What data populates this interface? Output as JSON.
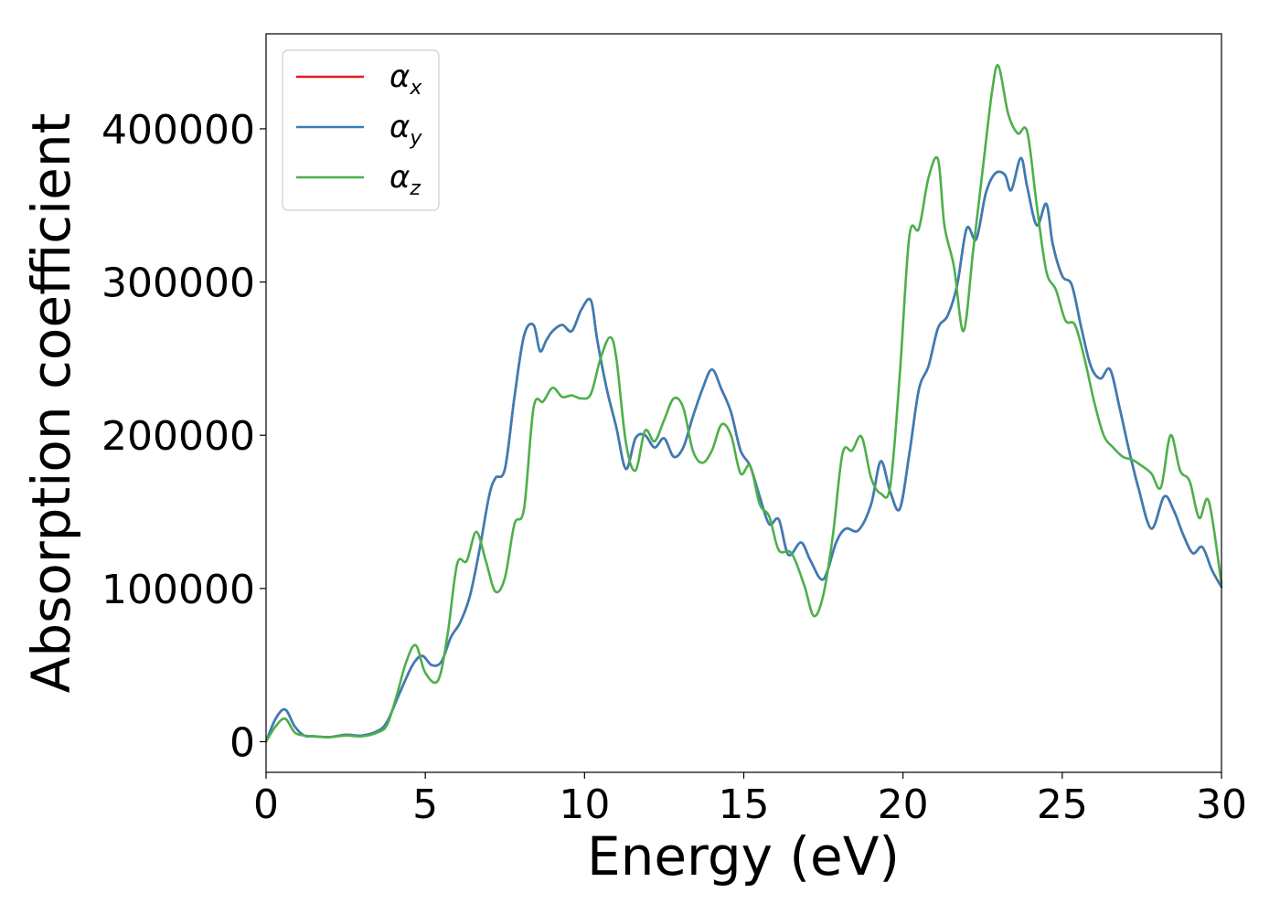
{
  "chart_data": {
    "type": "line",
    "title": "",
    "xlabel": "Energy (eV)",
    "ylabel": "Absorption coefficient",
    "xlim": [
      0,
      30
    ],
    "ylim": [
      -20000,
      462000
    ],
    "xticks": [
      0,
      5,
      10,
      15,
      20,
      25,
      30
    ],
    "xtick_labels": [
      "0",
      "5",
      "10",
      "15",
      "20",
      "25",
      "30"
    ],
    "yticks": [
      0,
      100000,
      200000,
      300000,
      400000
    ],
    "ytick_labels": [
      "0",
      "100000",
      "200000",
      "300000",
      "400000"
    ],
    "grid": false,
    "legend_position": "top-left",
    "series": [
      {
        "name": "α_x",
        "legend_symbol": "α",
        "legend_subscript": "x",
        "color": "#e41a1c",
        "x": [
          0,
          0.3,
          0.6,
          0.9,
          1.2,
          1.5,
          2.0,
          2.5,
          3.0,
          3.5,
          3.8,
          4.2,
          4.6,
          4.9,
          5.2,
          5.5,
          5.8,
          6.1,
          6.4,
          6.7,
          7.0,
          7.2,
          7.5,
          7.8,
          8.1,
          8.4,
          8.6,
          8.8,
          9.0,
          9.3,
          9.6,
          9.9,
          10.2,
          10.4,
          10.7,
          11.0,
          11.3,
          11.6,
          11.9,
          12.2,
          12.5,
          12.8,
          13.1,
          13.4,
          13.7,
          14.0,
          14.3,
          14.6,
          14.9,
          15.2,
          15.5,
          15.8,
          16.1,
          16.4,
          16.8,
          17.1,
          17.5,
          17.9,
          18.2,
          18.6,
          19.0,
          19.3,
          19.6,
          19.9,
          20.2,
          20.5,
          20.8,
          21.1,
          21.4,
          21.7,
          22.0,
          22.3,
          22.6,
          22.9,
          23.2,
          23.4,
          23.7,
          23.9,
          24.2,
          24.5,
          24.7,
          25.0,
          25.3,
          25.6,
          25.9,
          26.2,
          26.5,
          26.8,
          27.1,
          27.4,
          27.8,
          28.2,
          28.5,
          28.8,
          29.1,
          29.4,
          29.7,
          30.0
        ],
        "y": [
          0,
          15000,
          21000,
          10000,
          4000,
          3500,
          3000,
          4500,
          4000,
          7000,
          13000,
          32000,
          50000,
          56000,
          50000,
          52000,
          68000,
          78000,
          95000,
          125000,
          160000,
          172000,
          178000,
          225000,
          265000,
          272000,
          255000,
          262000,
          268000,
          272000,
          268000,
          282000,
          288000,
          262000,
          230000,
          205000,
          178000,
          198000,
          200000,
          192000,
          198000,
          186000,
          192000,
          212000,
          230000,
          243000,
          230000,
          215000,
          190000,
          180000,
          160000,
          142000,
          145000,
          122000,
          130000,
          118000,
          106000,
          130000,
          139000,
          138000,
          155000,
          183000,
          163000,
          152000,
          188000,
          230000,
          245000,
          270000,
          278000,
          298000,
          335000,
          328000,
          358000,
          371000,
          370000,
          360000,
          381000,
          362000,
          337000,
          351000,
          325000,
          304000,
          298000,
          270000,
          245000,
          237000,
          243000,
          218000,
          190000,
          165000,
          139000,
          160000,
          151000,
          135000,
          123000,
          127000,
          112000,
          101000
        ]
      },
      {
        "name": "α_y",
        "legend_symbol": "α",
        "legend_subscript": "y",
        "color": "#377eb8",
        "x": [
          0,
          0.3,
          0.6,
          0.9,
          1.2,
          1.5,
          2.0,
          2.5,
          3.0,
          3.5,
          3.8,
          4.2,
          4.6,
          4.9,
          5.2,
          5.5,
          5.8,
          6.1,
          6.4,
          6.7,
          7.0,
          7.2,
          7.5,
          7.8,
          8.1,
          8.4,
          8.6,
          8.8,
          9.0,
          9.3,
          9.6,
          9.9,
          10.2,
          10.4,
          10.7,
          11.0,
          11.3,
          11.6,
          11.9,
          12.2,
          12.5,
          12.8,
          13.1,
          13.4,
          13.7,
          14.0,
          14.3,
          14.6,
          14.9,
          15.2,
          15.5,
          15.8,
          16.1,
          16.4,
          16.8,
          17.1,
          17.5,
          17.9,
          18.2,
          18.6,
          19.0,
          19.3,
          19.6,
          19.9,
          20.2,
          20.5,
          20.8,
          21.1,
          21.4,
          21.7,
          22.0,
          22.3,
          22.6,
          22.9,
          23.2,
          23.4,
          23.7,
          23.9,
          24.2,
          24.5,
          24.7,
          25.0,
          25.3,
          25.6,
          25.9,
          26.2,
          26.5,
          26.8,
          27.1,
          27.4,
          27.8,
          28.2,
          28.5,
          28.8,
          29.1,
          29.4,
          29.7,
          30.0
        ],
        "y": [
          0,
          15000,
          21000,
          10000,
          4000,
          3500,
          3000,
          4500,
          4000,
          7000,
          13000,
          32000,
          50000,
          56000,
          50000,
          52000,
          68000,
          78000,
          95000,
          125000,
          160000,
          172000,
          178000,
          225000,
          265000,
          272000,
          255000,
          262000,
          268000,
          272000,
          268000,
          282000,
          288000,
          262000,
          230000,
          205000,
          178000,
          198000,
          200000,
          192000,
          198000,
          186000,
          192000,
          212000,
          230000,
          243000,
          230000,
          215000,
          190000,
          180000,
          160000,
          142000,
          145000,
          122000,
          130000,
          118000,
          106000,
          130000,
          139000,
          138000,
          155000,
          183000,
          163000,
          152000,
          188000,
          230000,
          245000,
          270000,
          278000,
          298000,
          335000,
          328000,
          358000,
          371000,
          370000,
          360000,
          381000,
          362000,
          337000,
          351000,
          325000,
          304000,
          298000,
          270000,
          245000,
          237000,
          243000,
          218000,
          190000,
          165000,
          139000,
          160000,
          151000,
          135000,
          123000,
          127000,
          112000,
          101000
        ]
      },
      {
        "name": "α_z",
        "legend_symbol": "α",
        "legend_subscript": "z",
        "color": "#4daf4a",
        "x": [
          0,
          0.3,
          0.6,
          0.9,
          1.2,
          1.5,
          2.0,
          2.5,
          3.0,
          3.5,
          3.8,
          4.1,
          4.4,
          4.7,
          5.0,
          5.4,
          5.7,
          6.0,
          6.3,
          6.6,
          6.9,
          7.2,
          7.5,
          7.8,
          8.1,
          8.4,
          8.7,
          9.0,
          9.3,
          9.6,
          9.9,
          10.2,
          10.5,
          10.8,
          11.0,
          11.3,
          11.6,
          11.9,
          12.2,
          12.5,
          12.8,
          13.1,
          13.4,
          13.7,
          14.0,
          14.3,
          14.6,
          14.9,
          15.2,
          15.5,
          15.8,
          16.1,
          16.5,
          16.9,
          17.2,
          17.5,
          17.8,
          18.1,
          18.4,
          18.7,
          19.0,
          19.3,
          19.6,
          19.9,
          20.2,
          20.5,
          20.8,
          21.1,
          21.3,
          21.6,
          21.9,
          22.2,
          22.5,
          22.8,
          23.0,
          23.3,
          23.6,
          23.9,
          24.2,
          24.5,
          24.8,
          25.1,
          25.4,
          25.7,
          26.0,
          26.3,
          26.6,
          26.9,
          27.2,
          27.5,
          27.8,
          28.1,
          28.4,
          28.7,
          29.0,
          29.3,
          29.6,
          30.0
        ],
        "y": [
          0,
          10000,
          15000,
          6000,
          4000,
          3500,
          3000,
          4000,
          3500,
          6000,
          11000,
          30000,
          52000,
          63000,
          45000,
          40000,
          70000,
          116000,
          118000,
          137000,
          118000,
          98000,
          107000,
          142000,
          152000,
          218000,
          222000,
          231000,
          225000,
          226000,
          224000,
          227000,
          250000,
          264000,
          250000,
          195000,
          177000,
          203000,
          196000,
          210000,
          224000,
          218000,
          190000,
          182000,
          190000,
          207000,
          200000,
          175000,
          180000,
          155000,
          147000,
          125000,
          123000,
          102000,
          82000,
          96000,
          135000,
          188000,
          190000,
          199000,
          172000,
          162000,
          167000,
          240000,
          330000,
          335000,
          368000,
          380000,
          337000,
          310000,
          268000,
          320000,
          373000,
          425000,
          441000,
          410000,
          397000,
          398000,
          350000,
          307000,
          295000,
          275000,
          272000,
          250000,
          222000,
          200000,
          192000,
          186000,
          184000,
          180000,
          175000,
          166000,
          200000,
          177000,
          170000,
          146000,
          157000,
          103000
        ]
      }
    ]
  }
}
